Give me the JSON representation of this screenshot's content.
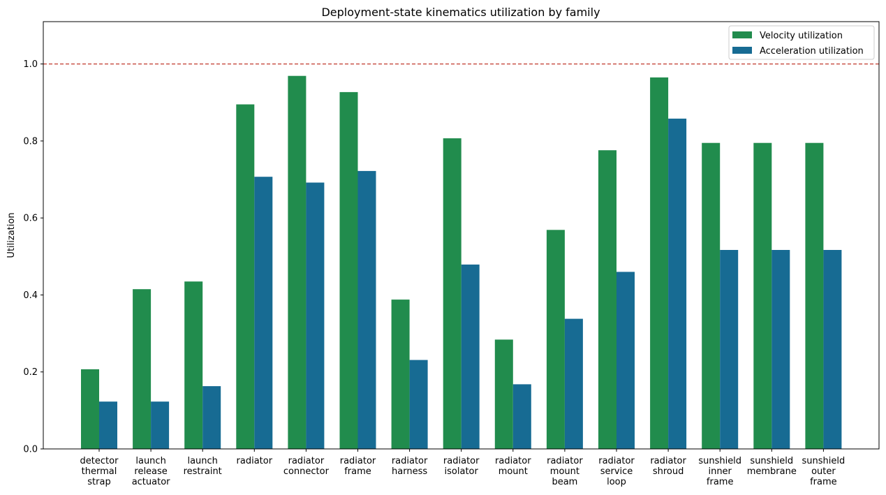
{
  "chart_data": {
    "type": "bar",
    "title": "Deployment-state kinematics utilization by family",
    "xlabel": "",
    "ylabel": "Utilization",
    "ylim": [
      0,
      1.11
    ],
    "yticks": [
      "0.0",
      "0.2",
      "0.4",
      "0.6",
      "0.8",
      "1.0"
    ],
    "grid": false,
    "legend_position": "top-right",
    "reference_line": {
      "y": 1.0,
      "style": "dashed",
      "color": "#c0392b"
    },
    "categories": [
      [
        "detector",
        "thermal",
        "strap"
      ],
      [
        "launch",
        "release",
        "actuator"
      ],
      [
        "launch",
        "restraint"
      ],
      [
        "radiator"
      ],
      [
        "radiator",
        "connector"
      ],
      [
        "radiator",
        "frame"
      ],
      [
        "radiator",
        "harness"
      ],
      [
        "radiator",
        "isolator"
      ],
      [
        "radiator",
        "mount"
      ],
      [
        "radiator",
        "mount",
        "beam"
      ],
      [
        "radiator",
        "service",
        "loop"
      ],
      [
        "radiator",
        "shroud"
      ],
      [
        "sunshield",
        "inner",
        "frame"
      ],
      [
        "sunshield",
        "membrane"
      ],
      [
        "sunshield",
        "outer",
        "frame"
      ]
    ],
    "series": [
      {
        "name": "Velocity utilization",
        "color": "#218c4d",
        "values": [
          0.207,
          0.415,
          0.435,
          0.895,
          0.969,
          0.927,
          0.388,
          0.807,
          0.284,
          0.569,
          0.776,
          0.965,
          0.795,
          0.795,
          0.795
        ]
      },
      {
        "name": "Acceleration utilization",
        "color": "#176b93",
        "values": [
          0.123,
          0.123,
          0.163,
          0.707,
          0.692,
          0.722,
          0.231,
          0.479,
          0.168,
          0.338,
          0.46,
          0.858,
          0.517,
          0.517,
          0.517
        ]
      }
    ]
  }
}
